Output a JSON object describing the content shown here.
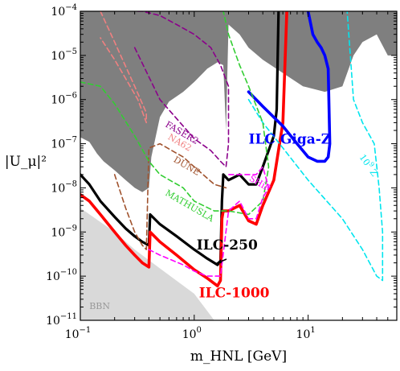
{
  "chart_data": {
    "type": "line",
    "xscale": "log",
    "yscale": "log",
    "xlim": [
      0.1,
      60
    ],
    "ylim": [
      1e-11,
      0.0001
    ],
    "xlabel": "m_HNL [GeV]",
    "ylabel": "|U_μ|²",
    "x_ticks": [
      {
        "value": 0.1,
        "mant": "10",
        "exp": "−1"
      },
      {
        "value": 1,
        "mant": "10",
        "exp": "0"
      },
      {
        "value": 10,
        "mant": "10",
        "exp": "1"
      }
    ],
    "y_ticks": [
      {
        "value": 1e-11,
        "mant": "10",
        "exp": "−11"
      },
      {
        "value": 1e-10,
        "mant": "10",
        "exp": "−10"
      },
      {
        "value": 1e-09,
        "mant": "10",
        "exp": "−9"
      },
      {
        "value": 1e-08,
        "mant": "10",
        "exp": "−8"
      },
      {
        "value": 1e-07,
        "mant": "10",
        "exp": "−7"
      },
      {
        "value": 1e-06,
        "mant": "10",
        "exp": "−6"
      },
      {
        "value": 1e-05,
        "mant": "10",
        "exp": "−5"
      },
      {
        "value": 0.0001,
        "mant": "10",
        "exp": "−4"
      }
    ],
    "regions": [
      {
        "name": "excluded",
        "fill": "#7f7f7f",
        "points": [
          [
            0.1,
            0.0001
          ],
          [
            0.1,
            1.4e-07
          ],
          [
            0.12,
            1.1e-07
          ],
          [
            0.14,
            6e-08
          ],
          [
            0.16,
            4e-08
          ],
          [
            0.2,
            2.5e-08
          ],
          [
            0.25,
            1.5e-08
          ],
          [
            0.3,
            1e-08
          ],
          [
            0.35,
            8e-09
          ],
          [
            0.4,
            1e-08
          ],
          [
            0.42,
            5e-08
          ],
          [
            0.5,
            4e-07
          ],
          [
            0.6,
            9e-07
          ],
          [
            0.8,
            1.5e-06
          ],
          [
            1,
            2.5e-06
          ],
          [
            1.3,
            5e-06
          ],
          [
            1.6,
            7e-06
          ],
          [
            1.8,
            6e-06
          ],
          [
            1.9,
            2e-07
          ],
          [
            2.0,
            5e-05
          ],
          [
            2.5,
            3e-05
          ],
          [
            3,
            1.5e-05
          ],
          [
            4,
            8e-06
          ],
          [
            6,
            4e-06
          ],
          [
            9,
            2e-06
          ],
          [
            14,
            1.5e-06
          ],
          [
            20,
            2e-06
          ],
          [
            25,
            1e-05
          ],
          [
            30,
            2e-05
          ],
          [
            40,
            3e-05
          ],
          [
            50,
            1e-05
          ],
          [
            60,
            1e-05
          ],
          [
            60,
            0.0001
          ]
        ]
      },
      {
        "name": "BBN",
        "fill": "#d9d9d9",
        "points": [
          [
            0.1,
            1e-11
          ],
          [
            0.1,
            3.5e-09
          ],
          [
            0.2,
            1e-09
          ],
          [
            0.3,
            4e-10
          ],
          [
            0.5,
            1.5e-10
          ],
          [
            1,
            4e-11
          ],
          [
            1.5,
            1e-11
          ]
        ]
      }
    ],
    "series": [
      {
        "name": "ILC-250",
        "color": "#000000",
        "width": 3.2,
        "dash": "none",
        "x": [
          0.1,
          0.12,
          0.15,
          0.2,
          0.25,
          0.3,
          0.35,
          0.4,
          0.41,
          0.5,
          0.7,
          1.0,
          1.3,
          1.6,
          1.7,
          1.75,
          1.8,
          2.0,
          2.5,
          3.0,
          3.5,
          4.0,
          5.0,
          5.3,
          5.5
        ],
        "y": [
          2e-08,
          1.2e-08,
          5e-09,
          2.2e-09,
          1.2e-09,
          8e-10,
          6e-10,
          5e-10,
          2.5e-09,
          1.5e-09,
          8e-10,
          4e-10,
          2.5e-10,
          1.8e-10,
          2.2e-10,
          5e-09,
          2e-08,
          1.5e-08,
          2e-08,
          1.2e-08,
          1.2e-08,
          3e-08,
          1.5e-07,
          6e-07,
          0.0001
        ]
      },
      {
        "name": "ILC-1000",
        "color": "#ff0000",
        "width": 3.6,
        "dash": "none",
        "x": [
          0.1,
          0.12,
          0.15,
          0.2,
          0.25,
          0.3,
          0.35,
          0.4,
          0.41,
          0.5,
          0.7,
          1.0,
          1.3,
          1.6,
          1.7,
          1.75,
          1.8,
          2.0,
          2.5,
          3.0,
          3.5,
          4.0,
          5.0,
          6.0,
          6.5
        ],
        "y": [
          7e-09,
          5e-09,
          2.5e-09,
          1e-09,
          5e-10,
          3e-10,
          2e-10,
          1.6e-10,
          1e-09,
          6e-10,
          3e-10,
          1.4e-10,
          9e-11,
          6e-11,
          8e-11,
          2e-09,
          3e-09,
          3e-09,
          4e-09,
          1.8e-09,
          1.5e-09,
          4e-09,
          1.5e-08,
          3e-07,
          0.0001
        ]
      },
      {
        "name": "ILC Giga-Z",
        "color": "#0000ff",
        "width": 3.6,
        "dash": "none",
        "x": [
          3.0,
          4.0,
          6.0,
          8.0,
          10,
          12,
          14,
          15,
          15.5,
          15,
          14,
          13,
          12,
          11,
          10
        ],
        "y": [
          1.5e-06,
          7e-07,
          2.5e-07,
          1e-07,
          5e-08,
          4e-08,
          4e-08,
          5e-08,
          1e-07,
          5e-06,
          1e-05,
          1.5e-05,
          2e-05,
          3e-05,
          0.0001
        ]
      },
      {
        "name": "10^9 Z",
        "color": "#00e5ee",
        "width": 1.6,
        "dash": "6 4",
        "x": [
          3.0,
          4.0,
          6.0,
          10,
          20,
          30,
          40,
          45,
          45,
          42,
          38,
          30,
          25,
          22
        ],
        "y": [
          1e-06,
          3e-07,
          8e-08,
          1.5e-08,
          2e-09,
          4e-10,
          1e-10,
          8e-11,
          1e-09,
          1e-08,
          1e-07,
          3e-07,
          1e-06,
          0.0001
        ]
      },
      {
        "name": "FASER2",
        "color": "#8b008b",
        "width": 1.6,
        "dash": "6 4",
        "x": [
          0.3,
          0.5,
          0.8,
          1.0,
          1.4,
          1.7,
          1.9,
          2.0,
          2.0,
          1.7,
          1.4,
          1.0,
          0.7,
          0.5,
          0.35,
          0.3
        ],
        "y": [
          1.5e-05,
          1e-06,
          2.5e-07,
          1.3e-07,
          7e-08,
          4e-08,
          3e-08,
          1e-07,
          2e-06,
          6e-06,
          1.5e-05,
          3e-05,
          5e-05,
          8e-05,
          0.0001,
          0.0001
        ]
      },
      {
        "name": "NA62",
        "color": "#f08080",
        "width": 1.6,
        "dash": "6 4",
        "x": [
          0.15,
          0.2,
          0.3,
          0.38,
          0.38,
          0.32,
          0.25,
          0.2,
          0.15
        ],
        "y": [
          0.0001,
          2e-05,
          2e-06,
          5e-07,
          3e-07,
          1e-06,
          3e-06,
          8e-06,
          2.5e-05
        ]
      },
      {
        "name": "DUNE",
        "color": "#a0522d",
        "width": 1.6,
        "dash": "6 4",
        "x": [
          0.2,
          0.25,
          0.3,
          0.35,
          0.38,
          0.4,
          0.5,
          0.8,
          1.0,
          1.5,
          1.9
        ],
        "y": [
          2e-08,
          3.5e-09,
          1e-09,
          5e-10,
          4e-10,
          8e-08,
          1e-07,
          5e-08,
          3e-08,
          1.2e-08,
          1e-08
        ]
      },
      {
        "name": "MATHUSLA",
        "color": "#32cd32",
        "width": 1.6,
        "dash": "6 4",
        "x": [
          0.1,
          0.15,
          0.2,
          0.3,
          0.4,
          0.5,
          0.8,
          1.0,
          1.5,
          2.0,
          3.0,
          4.0,
          4.5,
          4.0,
          3.0,
          2.5,
          2.0,
          1.8
        ],
        "y": [
          2.5e-06,
          2e-06,
          8e-07,
          1.5e-07,
          4e-08,
          2e-08,
          1e-08,
          5e-09,
          3e-09,
          3e-09,
          2.5e-09,
          5e-09,
          3e-08,
          3e-07,
          2e-06,
          6e-06,
          3e-05,
          0.0001
        ]
      },
      {
        "name": "SHiP",
        "color": "#ff00ff",
        "width": 1.6,
        "dash": "6 4",
        "x": [
          0.4,
          0.5,
          0.8,
          1.0,
          1.3,
          1.7,
          2.0,
          2.5,
          3.0,
          3.5,
          4.0,
          4.5,
          4.0,
          3.5,
          2.5,
          2.0
        ],
        "y": [
          4e-10,
          3e-10,
          1.8e-10,
          1.3e-10,
          1e-10,
          1e-10,
          3e-09,
          5e-09,
          2e-09,
          2e-09,
          6e-09,
          1e-08,
          3e-08,
          2e-08,
          2e-08,
          2e-08
        ]
      }
    ],
    "annotations": [
      {
        "text": "ILC-250",
        "color": "#000000",
        "x": 1.05,
        "y": 4e-10,
        "size": 17,
        "weight": "bold",
        "rotate": 0
      },
      {
        "text": "ILC-1000",
        "color": "#ff0000",
        "x": 1.1,
        "y": 3.3e-11,
        "size": 17,
        "weight": "bold",
        "rotate": 0
      },
      {
        "text": "ILC Giga-Z",
        "color": "#0000ff",
        "x": 3.0,
        "y": 1e-07,
        "size": 17,
        "weight": "bold",
        "rotate": 0
      },
      {
        "text": "BBN",
        "color": "#999999",
        "x": 0.12,
        "y": 1.8e-11,
        "size": 11,
        "weight": "normal",
        "rotate": 0
      },
      {
        "text": "FASER2",
        "color": "#8b008b",
        "x": 0.55,
        "y": 2.5e-07,
        "size": 11,
        "weight": "normal",
        "rotate": 30
      },
      {
        "text": "NA62",
        "color": "#f08080",
        "x": 0.58,
        "y": 1.3e-07,
        "size": 11,
        "weight": "normal",
        "rotate": 30
      },
      {
        "text": "DUNE",
        "color": "#a0522d",
        "x": 0.65,
        "y": 4e-08,
        "size": 11,
        "weight": "normal",
        "rotate": 30
      },
      {
        "text": "MATHUSLA",
        "color": "#32cd32",
        "x": 0.55,
        "y": 7e-09,
        "size": 11,
        "weight": "normal",
        "rotate": 30
      },
      {
        "text": "SHiP",
        "color": "#ff00ff",
        "x": 3.0,
        "y": 1.5e-08,
        "size": 11,
        "weight": "normal",
        "rotate": 30
      },
      {
        "text": "10^9 Z",
        "color": "#00e5ee",
        "x": 28,
        "y": 5e-08,
        "size": 11,
        "weight": "normal",
        "rotate": 55
      }
    ]
  }
}
